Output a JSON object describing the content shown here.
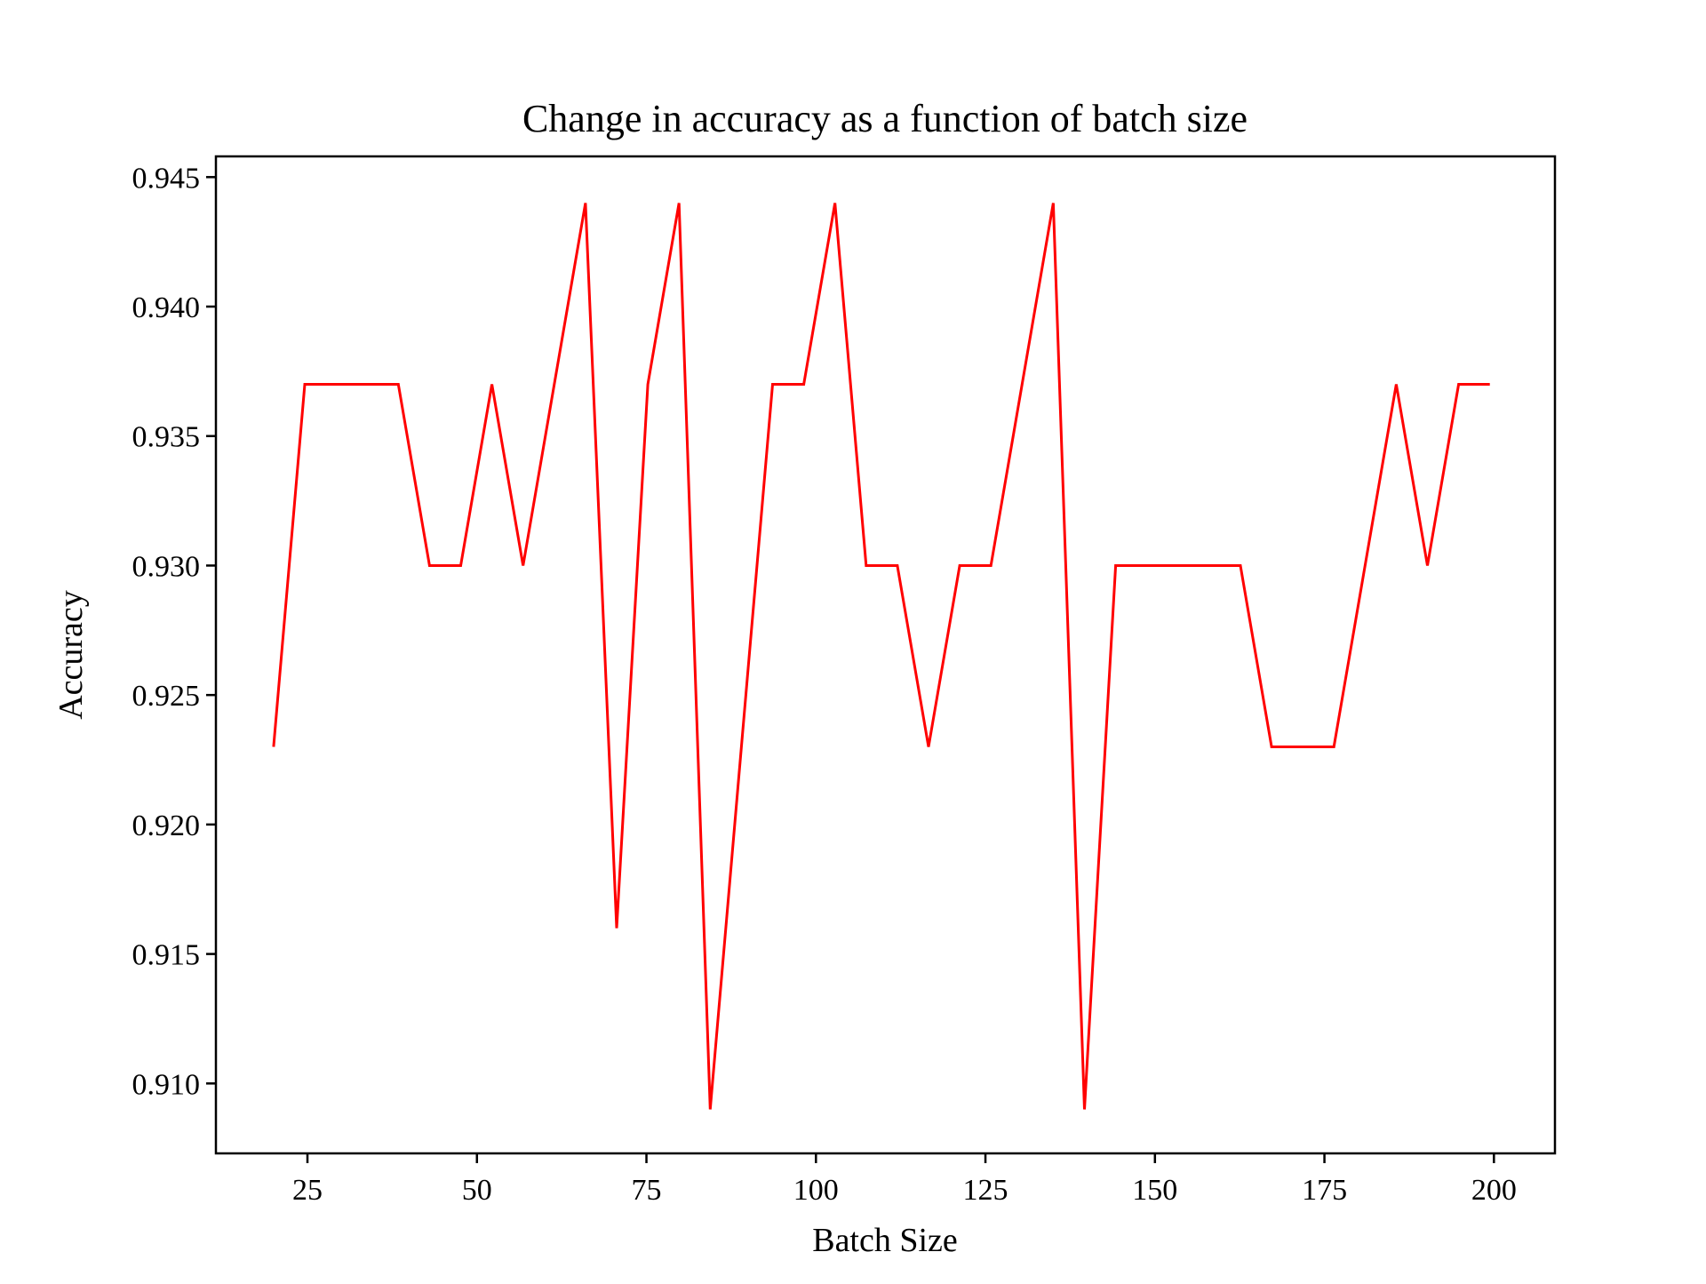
{
  "chart_data": {
    "type": "line",
    "title": "Change in accuracy as a function of batch size",
    "xlabel": "Batch Size",
    "ylabel": "Accuracy",
    "xlim": [
      11.5,
      209
    ],
    "ylim": [
      0.9073,
      0.9458
    ],
    "xticks": [
      25,
      50,
      75,
      100,
      125,
      150,
      175,
      200
    ],
    "xtick_labels": [
      "25",
      "50",
      "75",
      "100",
      "125",
      "150",
      "175",
      "200"
    ],
    "yticks": [
      0.91,
      0.915,
      0.92,
      0.925,
      0.93,
      0.935,
      0.94,
      0.945
    ],
    "ytick_labels": [
      "0.910",
      "0.915",
      "0.920",
      "0.925",
      "0.930",
      "0.935",
      "0.940",
      "0.945"
    ],
    "grid": false,
    "series": [
      {
        "color": "#ff0000",
        "x": [
          20,
          24.6,
          29.2,
          33.8,
          38.4,
          43.0,
          47.6,
          52.2,
          56.8,
          61.4,
          66.0,
          70.6,
          75.2,
          79.8,
          84.4,
          89.0,
          93.6,
          98.2,
          102.8,
          107.4,
          112.0,
          116.6,
          121.2,
          125.8,
          130.4,
          135.0,
          139.6,
          144.2,
          148.8,
          153.4,
          158.0,
          162.6,
          167.2,
          171.8,
          176.4,
          181.0,
          185.6,
          190.2,
          194.8,
          199.4
        ],
        "y": [
          0.923,
          0.937,
          0.937,
          0.937,
          0.937,
          0.93,
          0.93,
          0.937,
          0.93,
          0.937,
          0.944,
          0.916,
          0.937,
          0.944,
          0.909,
          0.923,
          0.937,
          0.937,
          0.944,
          0.93,
          0.93,
          0.923,
          0.93,
          0.93,
          0.937,
          0.944,
          0.909,
          0.93,
          0.93,
          0.93,
          0.93,
          0.93,
          0.923,
          0.923,
          0.923,
          0.93,
          0.937,
          0.93,
          0.937,
          0.937
        ]
      }
    ]
  }
}
